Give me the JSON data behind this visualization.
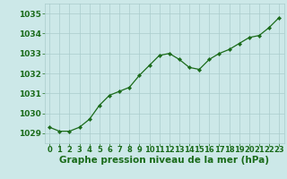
{
  "x": [
    0,
    1,
    2,
    3,
    4,
    5,
    6,
    7,
    8,
    9,
    10,
    11,
    12,
    13,
    14,
    15,
    16,
    17,
    18,
    19,
    20,
    21,
    22,
    23
  ],
  "y": [
    1029.3,
    1029.1,
    1029.1,
    1029.3,
    1029.7,
    1030.4,
    1030.9,
    1031.1,
    1031.3,
    1031.9,
    1032.4,
    1032.9,
    1033.0,
    1032.7,
    1032.3,
    1032.2,
    1032.7,
    1033.0,
    1033.2,
    1033.5,
    1033.8,
    1033.9,
    1034.3,
    1034.8
  ],
  "ylim": [
    1028.5,
    1035.5
  ],
  "yticks": [
    1029,
    1030,
    1031,
    1032,
    1033,
    1034,
    1035
  ],
  "xlim": [
    -0.5,
    23.5
  ],
  "xticks": [
    0,
    1,
    2,
    3,
    4,
    5,
    6,
    7,
    8,
    9,
    10,
    11,
    12,
    13,
    14,
    15,
    16,
    17,
    18,
    19,
    20,
    21,
    22,
    23
  ],
  "xlabel": "Graphe pression niveau de la mer (hPa)",
  "line_color": "#1a6b1a",
  "marker_color": "#1a6b1a",
  "bg_color": "#cce8e8",
  "grid_color": "#aacccc",
  "tick_label_color": "#1a6b1a",
  "xlabel_color": "#1a6b1a",
  "xlabel_fontsize": 7.5,
  "ytick_fontsize": 6.5,
  "xtick_fontsize": 6.0
}
